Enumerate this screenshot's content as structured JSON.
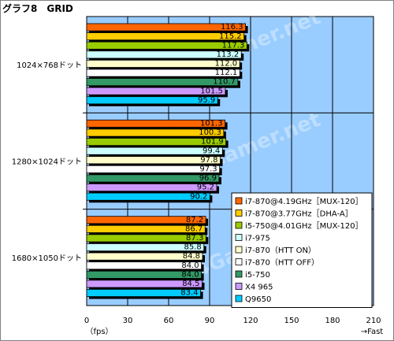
{
  "header": {
    "title": "グラフ8　GRID"
  },
  "chart_data": {
    "type": "bar",
    "orientation": "horizontal",
    "title": "グラフ8　GRID",
    "xlabel": "（fps）",
    "xlabel_right": "→Fast",
    "xlim": [
      0,
      210
    ],
    "xticks": [
      0,
      30,
      60,
      90,
      120,
      150,
      180,
      210
    ],
    "grid": true,
    "legend_position": "bottom-right",
    "watermark": "4Gamer.net",
    "categories": [
      "1024×768ドット",
      "1280×1024ドット",
      "1680×1050ドット"
    ],
    "series": [
      {
        "name": "i7-870@4.19GHz［MUX-120］",
        "color": "#ff6600",
        "values": [
          116.3,
          101.3,
          87.2
        ]
      },
      {
        "name": "i7-870@3.77GHz［DHA-A］",
        "color": "#ffcc00",
        "values": [
          115.2,
          100.3,
          86.7
        ]
      },
      {
        "name": "i5-750@4.01GHz［MUX-120］",
        "color": "#99cc00",
        "values": [
          117.3,
          101.9,
          87.3
        ]
      },
      {
        "name": "i7-975",
        "color": "#ccffff",
        "values": [
          113.2,
          99.4,
          85.8
        ]
      },
      {
        "name": "i7-870（HTT ON）",
        "color": "#ffffcc",
        "values": [
          112.0,
          97.8,
          84.8
        ]
      },
      {
        "name": "i7-870（HTT OFF）",
        "color": "#ffffff",
        "values": [
          112.1,
          97.3,
          84.0
        ]
      },
      {
        "name": "i5-750",
        "color": "#339966",
        "values": [
          110.7,
          96.9,
          84.0
        ]
      },
      {
        "name": "X4 965",
        "color": "#cc99ff",
        "values": [
          101.5,
          95.2,
          84.5
        ]
      },
      {
        "name": "Q9650",
        "color": "#00ccff",
        "values": [
          95.9,
          90.2,
          83.4
        ]
      }
    ]
  }
}
